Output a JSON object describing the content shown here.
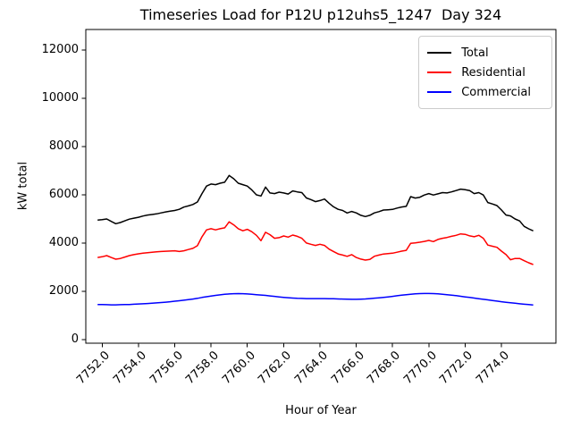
{
  "chart_data": {
    "type": "line",
    "title": "Timeseries Load for P12U p12uhs5_1247  Day 324",
    "xlabel": "Hour of Year",
    "ylabel": "kW total",
    "grid": false,
    "background": "#ffffff",
    "legend_position": "upper right",
    "xlim": [
      7751.1,
      7777.0
    ],
    "ylim": [
      -150,
      12850
    ],
    "xticks": [
      7752,
      7754,
      7756,
      7758,
      7760,
      7762,
      7764,
      7766,
      7768,
      7770,
      7772,
      7774
    ],
    "xtick_labels": [
      "7752.0",
      "7754.0",
      "7756.0",
      "7758.0",
      "7760.0",
      "7762.0",
      "7764.0",
      "7766.0",
      "7768.0",
      "7770.0",
      "7772.0",
      "7774.0"
    ],
    "yticks": [
      0,
      2000,
      4000,
      6000,
      8000,
      10000,
      12000
    ],
    "ytick_labels": [
      "0",
      "2000",
      "4000",
      "6000",
      "8000",
      "10000",
      "12000"
    ],
    "x_start": 7751.75,
    "x_step": 0.25,
    "n_points": 97,
    "series": [
      {
        "name": "Total",
        "color": "#000000",
        "values": [
          4950,
          4970,
          5000,
          4900,
          4800,
          4850,
          4920,
          4990,
          5030,
          5070,
          5120,
          5160,
          5185,
          5210,
          5250,
          5290,
          5320,
          5350,
          5400,
          5490,
          5540,
          5600,
          5700,
          6050,
          6360,
          6445,
          6420,
          6480,
          6520,
          6800,
          6665,
          6480,
          6420,
          6360,
          6200,
          6000,
          5950,
          6320,
          6075,
          6050,
          6110,
          6075,
          6030,
          6160,
          6120,
          6090,
          5870,
          5800,
          5715,
          5760,
          5825,
          5655,
          5500,
          5400,
          5350,
          5245,
          5310,
          5250,
          5150,
          5100,
          5150,
          5250,
          5300,
          5370,
          5380,
          5395,
          5450,
          5495,
          5520,
          5925,
          5865,
          5900,
          5990,
          6050,
          5990,
          6040,
          6090,
          6075,
          6120,
          6175,
          6235,
          6210,
          6175,
          6050,
          6090,
          5990,
          5680,
          5620,
          5555,
          5370,
          5160,
          5125,
          5000,
          4915,
          4690,
          4590,
          4505
        ]
      },
      {
        "name": "Residential",
        "color": "#ff0000",
        "values": [
          3400,
          3430,
          3480,
          3400,
          3330,
          3360,
          3420,
          3480,
          3520,
          3555,
          3580,
          3600,
          3620,
          3640,
          3650,
          3660,
          3670,
          3680,
          3650,
          3680,
          3730,
          3780,
          3890,
          4260,
          4545,
          4595,
          4545,
          4595,
          4630,
          4880,
          4755,
          4595,
          4510,
          4570,
          4470,
          4320,
          4100,
          4445,
          4345,
          4200,
          4225,
          4295,
          4245,
          4330,
          4280,
          4200,
          4000,
          3950,
          3900,
          3950,
          3900,
          3750,
          3650,
          3550,
          3500,
          3450,
          3520,
          3400,
          3335,
          3295,
          3320,
          3455,
          3500,
          3545,
          3560,
          3580,
          3620,
          3665,
          3700,
          3990,
          4010,
          4035,
          4070,
          4110,
          4060,
          4150,
          4200,
          4230,
          4280,
          4320,
          4380,
          4360,
          4300,
          4260,
          4320,
          4200,
          3915,
          3870,
          3825,
          3665,
          3520,
          3310,
          3360,
          3360,
          3270,
          3185,
          3110
        ]
      },
      {
        "name": "Commercial",
        "color": "#0000ff",
        "values": [
          1450,
          1450,
          1445,
          1440,
          1440,
          1445,
          1450,
          1455,
          1465,
          1475,
          1485,
          1495,
          1505,
          1520,
          1535,
          1550,
          1570,
          1590,
          1610,
          1630,
          1655,
          1680,
          1710,
          1745,
          1775,
          1805,
          1830,
          1855,
          1875,
          1890,
          1900,
          1905,
          1900,
          1890,
          1875,
          1860,
          1845,
          1830,
          1810,
          1790,
          1770,
          1750,
          1735,
          1720,
          1710,
          1705,
          1700,
          1700,
          1700,
          1700,
          1700,
          1695,
          1690,
          1685,
          1680,
          1675,
          1670,
          1670,
          1675,
          1685,
          1700,
          1715,
          1730,
          1750,
          1770,
          1790,
          1815,
          1840,
          1860,
          1880,
          1895,
          1905,
          1910,
          1910,
          1905,
          1895,
          1880,
          1860,
          1840,
          1820,
          1795,
          1770,
          1745,
          1720,
          1695,
          1670,
          1645,
          1620,
          1595,
          1570,
          1545,
          1525,
          1505,
          1485,
          1465,
          1450,
          1435
        ]
      }
    ]
  }
}
